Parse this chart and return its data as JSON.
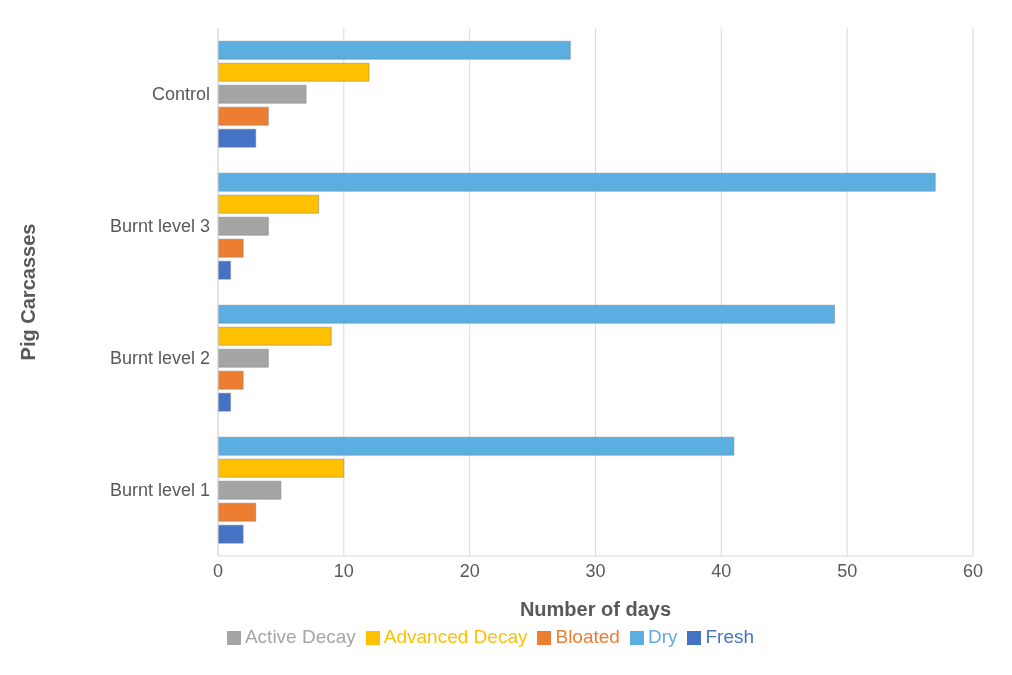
{
  "chart_data": {
    "type": "bar",
    "orientation": "horizontal",
    "xlabel": "Number of days",
    "ylabel": "Pig Carcasses",
    "categories": [
      "Control",
      "Burnt level 3",
      "Burnt level 2",
      "Burnt level 1"
    ],
    "series": [
      {
        "name": "Dry",
        "color": "#5aaee0",
        "values": [
          28,
          57,
          49,
          41
        ]
      },
      {
        "name": "Advanced Decay",
        "color": "#ffc000",
        "values": [
          12,
          8,
          9,
          10
        ]
      },
      {
        "name": "Active Decay",
        "color": "#a5a5a5",
        "values": [
          7,
          4,
          4,
          5
        ]
      },
      {
        "name": "Bloated",
        "color": "#ed7d31",
        "values": [
          4,
          2,
          2,
          3
        ]
      },
      {
        "name": "Fresh",
        "color": "#4472c4",
        "values": [
          3,
          1,
          1,
          2
        ]
      }
    ],
    "xlim": [
      0,
      60
    ],
    "xticks": [
      0,
      10,
      20,
      30,
      40,
      50,
      60
    ],
    "grid": "x",
    "legend": "bottom"
  }
}
